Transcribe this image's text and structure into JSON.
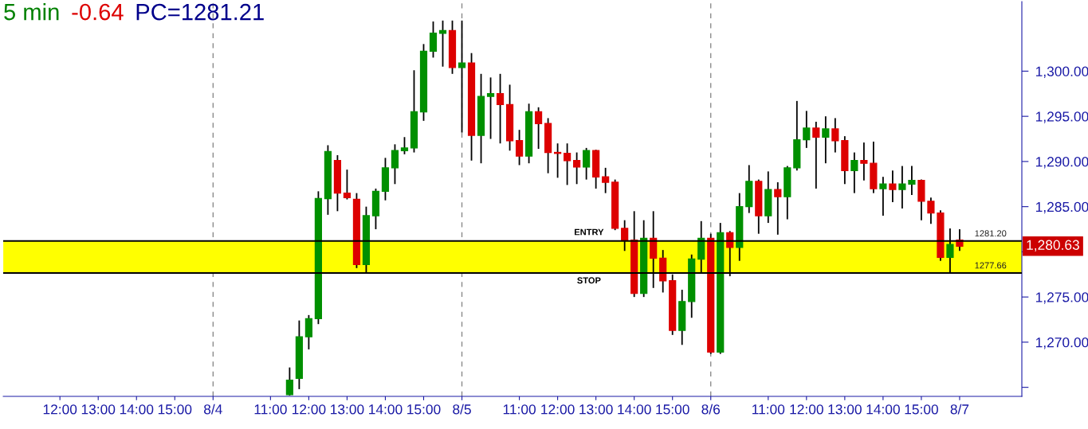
{
  "chart_data": {
    "type": "candlestick",
    "title": "5 min",
    "annotations": [
      "-0.64",
      "PC=1281.21",
      "1,280.63",
      {
        "text": "ENTRY",
        "y": 1281.2
      },
      {
        "text": "STOP",
        "y": 1277.66
      }
    ],
    "categories": [
      null,
      null,
      null,
      null,
      null,
      "12:00",
      null,
      null,
      null,
      "13:00",
      null,
      null,
      null,
      "14:00",
      null,
      null,
      null,
      "15:00",
      null,
      null,
      null,
      "8/4",
      null,
      null,
      null,
      null,
      null,
      "11:00",
      null,
      null,
      null,
      "12:00",
      null,
      null,
      null,
      "13:00",
      null,
      null,
      null,
      "14:00",
      null,
      null,
      null,
      "15:00",
      null,
      null,
      null,
      "8/5",
      null,
      null,
      null,
      null,
      null,
      "11:00",
      null,
      null,
      null,
      "12:00",
      null,
      null,
      null,
      "13:00",
      null,
      null,
      null,
      "14:00",
      null,
      null,
      null,
      "15:00",
      null,
      null,
      null,
      "8/6",
      null,
      null,
      null,
      null,
      null,
      "11:00",
      null,
      null,
      null,
      "12:00",
      null,
      null,
      null,
      "13:00",
      null,
      null,
      null,
      "14:00",
      null,
      null,
      null,
      "15:00",
      null,
      null,
      null,
      "8/7",
      null,
      null,
      null,
      null,
      null,
      null
    ],
    "ohlc": [
      null,
      null,
      null,
      null,
      null,
      null,
      null,
      null,
      null,
      null,
      null,
      null,
      null,
      null,
      null,
      null,
      null,
      null,
      null,
      null,
      null,
      null,
      null,
      null,
      null,
      null,
      null,
      null,
      null,
      [
        1264.2,
        1267.2,
        1264.1,
        1265.8
      ],
      [
        1266.0,
        1272.4,
        1264.8,
        1270.6
      ],
      [
        1270.6,
        1273.0,
        1269.2,
        1272.6
      ],
      [
        1272.6,
        1286.7,
        1272.0,
        1285.9
      ],
      [
        1285.9,
        1291.8,
        1284.1,
        1291.1
      ],
      [
        1290.1,
        1290.7,
        1284.5,
        1286.5
      ],
      [
        1286.5,
        1289.1,
        1285.8,
        1286.0
      ],
      [
        1285.8,
        1286.5,
        1278.2,
        1278.6
      ],
      [
        1278.6,
        1285.0,
        1277.7,
        1284.0
      ],
      [
        1284.0,
        1287.0,
        1282.5,
        1286.7
      ],
      [
        1286.7,
        1290.4,
        1285.7,
        1289.3
      ],
      [
        1289.3,
        1291.9,
        1287.5,
        1291.2
      ],
      [
        1291.2,
        1292.7,
        1290.8,
        1291.5
      ],
      [
        1291.5,
        1300.1,
        1291.0,
        1295.5
      ],
      [
        1295.5,
        1303.0,
        1294.5,
        1302.2
      ],
      [
        1302.2,
        1305.5,
        1301.5,
        1304.2
      ],
      [
        1304.2,
        1305.6,
        1300.5,
        1304.5
      ],
      [
        1304.5,
        1305.6,
        1299.7,
        1300.4
      ],
      [
        1300.4,
        1305.6,
        1293.2,
        1300.9
      ],
      [
        1300.9,
        1302.0,
        1290.1,
        1292.9
      ],
      [
        1292.9,
        1299.7,
        1289.8,
        1297.2
      ],
      [
        1297.2,
        1299.3,
        1292.5,
        1297.5
      ],
      [
        1297.5,
        1299.7,
        1292.0,
        1296.3
      ],
      [
        1296.3,
        1298.5,
        1291.2,
        1292.3
      ],
      [
        1292.3,
        1293.5,
        1289.6,
        1290.6
      ],
      [
        1290.6,
        1296.4,
        1289.8,
        1295.5
      ],
      [
        1295.5,
        1296.0,
        1291.4,
        1294.2
      ],
      [
        1294.2,
        1294.8,
        1288.7,
        1291.0
      ],
      [
        1291.0,
        1292.0,
        1288.2,
        1290.9
      ],
      [
        1290.9,
        1292.0,
        1287.4,
        1290.1
      ],
      [
        1290.1,
        1291.0,
        1287.5,
        1289.4
      ],
      [
        1289.4,
        1291.5,
        1288.0,
        1291.2
      ],
      [
        1291.2,
        1291.3,
        1287.0,
        1288.3
      ],
      [
        1288.3,
        1289.3,
        1286.5,
        1287.7
      ],
      [
        1287.7,
        1288.0,
        1282.4,
        1282.6
      ],
      [
        1282.6,
        1283.5,
        1280.1,
        1281.3
      ],
      [
        1281.3,
        1284.5,
        1275.0,
        1275.4
      ],
      [
        1275.4,
        1283.5,
        1275.0,
        1281.5
      ],
      [
        1281.5,
        1284.5,
        1276.0,
        1279.3
      ],
      [
        1279.3,
        1280.2,
        1275.5,
        1276.8
      ],
      [
        1276.8,
        1277.5,
        1270.8,
        1271.3
      ],
      [
        1271.3,
        1275.8,
        1269.7,
        1274.5
      ],
      [
        1274.5,
        1279.7,
        1272.7,
        1279.2
      ],
      [
        1279.2,
        1283.4,
        1277.6,
        1281.5
      ],
      [
        1281.5,
        1282.0,
        1268.7,
        1268.9
      ],
      [
        1268.9,
        1283.2,
        1268.7,
        1282.1
      ],
      [
        1282.1,
        1282.3,
        1277.3,
        1280.5
      ],
      [
        1280.5,
        1286.5,
        1279.0,
        1285.0
      ],
      [
        1285.0,
        1289.6,
        1284.3,
        1287.8
      ],
      [
        1287.8,
        1288.0,
        1282.0,
        1284.0
      ],
      [
        1284.0,
        1288.9,
        1283.2,
        1286.9
      ],
      [
        1286.9,
        1287.7,
        1281.9,
        1286.1
      ],
      [
        1286.1,
        1289.5,
        1283.6,
        1289.3
      ],
      [
        1289.3,
        1296.7,
        1289.0,
        1292.4
      ],
      [
        1292.4,
        1295.6,
        1291.5,
        1293.7
      ],
      [
        1293.7,
        1294.4,
        1287.0,
        1292.7
      ],
      [
        1292.7,
        1295.0,
        1289.8,
        1293.6
      ],
      [
        1293.6,
        1294.8,
        1291.0,
        1292.3
      ],
      [
        1292.3,
        1292.8,
        1287.5,
        1289.0
      ],
      [
        1289.0,
        1291.0,
        1286.5,
        1290.1
      ],
      [
        1290.1,
        1292.1,
        1287.9,
        1289.8
      ],
      [
        1289.8,
        1292.2,
        1286.5,
        1287.0
      ],
      [
        1287.0,
        1288.3,
        1284.0,
        1287.5
      ],
      [
        1287.5,
        1289.0,
        1285.5,
        1286.9
      ],
      [
        1286.9,
        1289.5,
        1284.8,
        1287.5
      ],
      [
        1287.5,
        1289.5,
        1286.3,
        1287.9
      ],
      [
        1287.9,
        1288.0,
        1283.5,
        1285.6
      ],
      [
        1285.6,
        1286.0,
        1283.1,
        1284.3
      ],
      [
        1284.3,
        1284.6,
        1279.0,
        1279.4
      ],
      [
        1279.4,
        1282.6,
        1277.6,
        1280.8
      ],
      [
        1281.3,
        1282.5,
        1280.1,
        1280.63
      ],
      null,
      null,
      null,
      null,
      null,
      null
    ],
    "colors": [
      null,
      null,
      null,
      null,
      null,
      null,
      null,
      null,
      null,
      null,
      null,
      null,
      null,
      null,
      null,
      null,
      null,
      null,
      null,
      null,
      null,
      null,
      null,
      null,
      null,
      null,
      null,
      null,
      null,
      "#009000",
      "#009000",
      "#009000",
      "#009000",
      "#009000",
      "#dd0000",
      "#dd0000",
      "#dd0000",
      "#009000",
      "#009000",
      "#009000",
      "#009000",
      "#009000",
      "#009000",
      "#009000",
      "#009000",
      "#009000",
      "#dd0000",
      "#009000",
      "#dd0000",
      "#009000",
      "#009000",
      "#dd0000",
      "#dd0000",
      "#dd0000",
      "#009000",
      "#dd0000",
      "#dd0000",
      "#dd0000",
      "#dd0000",
      "#dd0000",
      "#009000",
      "#dd0000",
      "#dd0000",
      "#dd0000",
      "#dd0000",
      "#dd0000",
      "#009000",
      "#dd0000",
      "#dd0000",
      "#dd0000",
      "#009000",
      "#009000",
      "#009000",
      "#dd0000",
      "#009000",
      "#dd0000",
      "#009000",
      "#009000",
      "#dd0000",
      "#009000",
      "#dd0000",
      "#009000",
      "#009000",
      "#009000",
      "#dd0000",
      "#009000",
      "#dd0000",
      "#dd0000",
      "#009000",
      "#dd0000",
      "#dd0000",
      "#009000",
      "#dd0000",
      "#009000",
      "#009000",
      "#dd0000",
      "#dd0000",
      "#dd0000",
      "#009000",
      "#dd0000",
      null,
      null,
      null,
      null,
      null,
      null
    ],
    "ylim": [
      1264.0,
      1307.7
    ],
    "yticks": [
      {
        "value": 1265,
        "label": null
      },
      {
        "value": 1270,
        "label": "1,270.00"
      },
      {
        "value": 1275,
        "label": "1,275.00"
      },
      {
        "value": 1280,
        "label": null
      },
      {
        "value": 1285,
        "label": "1,285.00"
      },
      {
        "value": 1290,
        "label": "1,290.00"
      },
      {
        "value": 1295,
        "label": "1,295.00"
      },
      {
        "value": 1300,
        "label": "1,300.00"
      }
    ],
    "ref_lines": [
      {
        "axis": "x",
        "value": "8/4",
        "label": null,
        "color": "#808080",
        "line_style": "dashed"
      },
      {
        "axis": "x",
        "value": "8/5",
        "label": null,
        "color": "#808080",
        "line_style": "dashed"
      },
      {
        "axis": "x",
        "value": "8/6",
        "label": null,
        "color": "#808080",
        "line_style": "dashed"
      },
      {
        "axis": "y",
        "value": 1281.2,
        "label": "1281.20",
        "color": "#000000",
        "line_style": "solid"
      },
      {
        "axis": "y",
        "value": 1277.66,
        "label": "1277.66",
        "color": "#000000",
        "line_style": "solid"
      }
    ],
    "bands": [
      {
        "axis": "y",
        "from": 1277.66,
        "to": 1281.2,
        "label": null,
        "color": "#ffff00"
      }
    ],
    "grid": false
  }
}
